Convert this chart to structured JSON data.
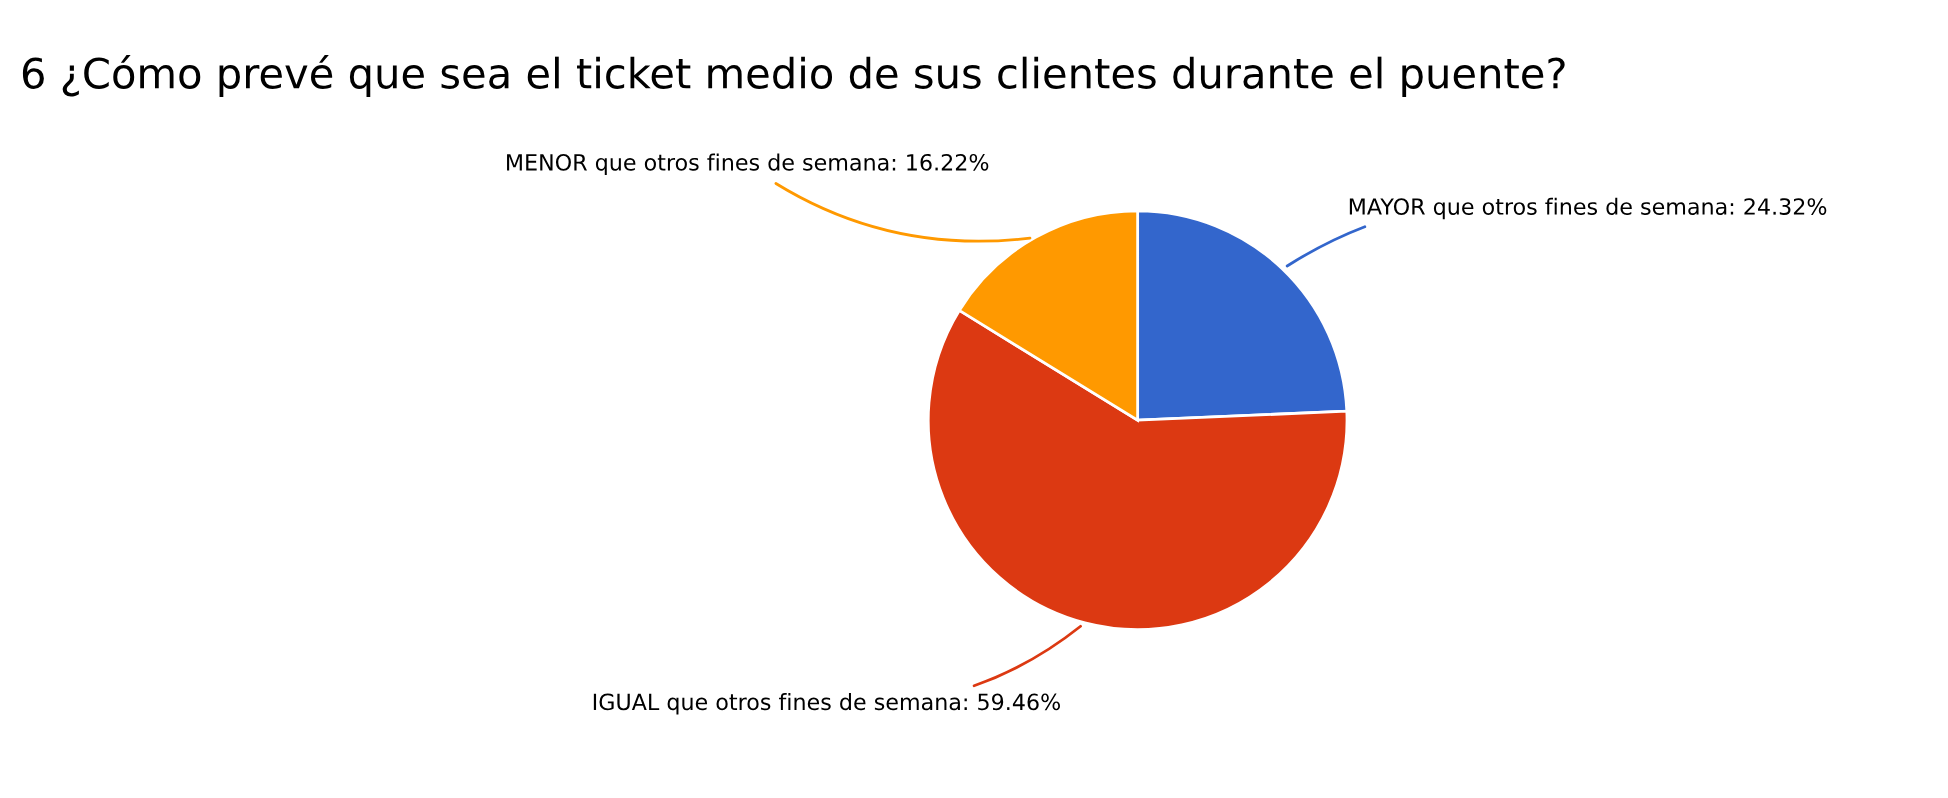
{
  "chart_data": {
    "type": "pie",
    "title": "6 ¿Cómo prevé que sea el ticket medio de sus clientes durante el puente?",
    "categories": [
      "MAYOR que otros fines de semana",
      "IGUAL que otros fines de semana",
      "MENOR que otros fines de semana"
    ],
    "values": [
      24.32,
      59.46,
      16.22
    ],
    "colors": [
      "#3366cc",
      "#dc3912",
      "#ff9900"
    ],
    "value_labels": [
      "24.32%",
      "59.46%",
      "16.22%"
    ],
    "legend": false
  }
}
